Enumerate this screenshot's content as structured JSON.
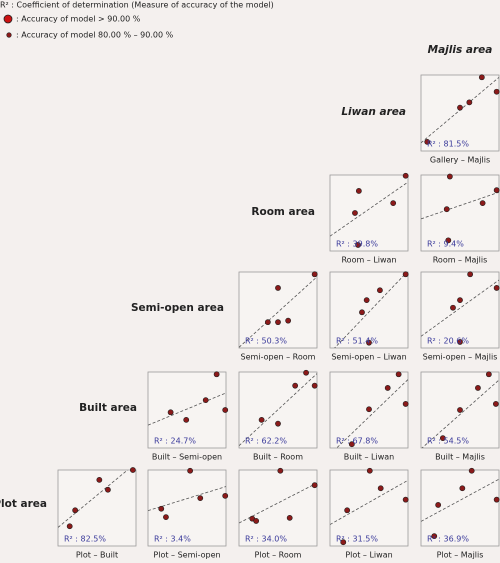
{
  "legend": {
    "r2": "R² : Coefficient of determination (Measure of accuracy of the model)",
    "large": ": Accuracy of model > 90.00 %",
    "small": ": Accuracy of model  80.00 % – 90.00 %"
  },
  "row_titles": [
    "Majlis area",
    "Liwan area",
    "Room area",
    "Semi-open area",
    "Built area",
    "Plot area"
  ],
  "chart_data": [
    {
      "type": "scatter",
      "xlabel": "Gallery – Majlis",
      "annotation": "R² : 81.5%",
      "x": [
        0.08,
        0.5,
        0.62,
        0.78,
        0.97
      ],
      "y": [
        0.12,
        0.57,
        0.64,
        0.97,
        0.78
      ],
      "xlim": [
        0,
        1
      ],
      "ylim": [
        0,
        1
      ],
      "color": "#8b1a1a"
    },
    {
      "type": "scatter",
      "xlabel": "Room – Liwan",
      "annotation": "R² : 39.8%",
      "x": [
        0.37,
        0.32,
        0.36,
        0.81,
        0.97
      ],
      "y": [
        0.79,
        0.5,
        0.08,
        0.63,
        0.99
      ],
      "xlim": [
        0,
        1
      ],
      "ylim": [
        0,
        1
      ],
      "color": "#8b1a1a"
    },
    {
      "type": "scatter",
      "xlabel": "Room – Majlis",
      "annotation": "R² : 9.4%",
      "x": [
        0.37,
        0.35,
        0.33,
        0.79,
        0.97
      ],
      "y": [
        0.98,
        0.14,
        0.55,
        0.63,
        0.8
      ],
      "xlim": [
        0,
        1
      ],
      "ylim": [
        0,
        1
      ],
      "color": "#8b1a1a"
    },
    {
      "type": "scatter",
      "xlabel": "Semi-open – Room",
      "annotation": "R² : 50.3%",
      "x": [
        0.5,
        0.37,
        0.5,
        0.63,
        0.97
      ],
      "y": [
        0.79,
        0.34,
        0.34,
        0.36,
        0.97
      ],
      "xlim": [
        0,
        1
      ],
      "ylim": [
        0,
        1
      ],
      "color": "#8b1a1a"
    },
    {
      "type": "scatter",
      "xlabel": "Semi-open – Liwan",
      "annotation": "R² : 51.4%",
      "x": [
        0.5,
        0.41,
        0.47,
        0.64,
        0.97
      ],
      "y": [
        0.07,
        0.47,
        0.63,
        0.76,
        0.97
      ],
      "xlim": [
        0,
        1
      ],
      "ylim": [
        0,
        1
      ],
      "color": "#8b1a1a"
    },
    {
      "type": "scatter",
      "xlabel": "Semi-open – Majlis",
      "annotation": "R² : 20.6%",
      "x": [
        0.41,
        0.5,
        0.63,
        0.5,
        0.97
      ],
      "y": [
        0.53,
        0.63,
        0.97,
        0.08,
        0.79
      ],
      "xlim": [
        0,
        1
      ],
      "ylim": [
        0,
        1
      ],
      "color": "#8b1a1a"
    },
    {
      "type": "scatter",
      "xlabel": "Built – Semi-open",
      "annotation": "R² : 24.7%",
      "x": [
        0.29,
        0.49,
        0.74,
        0.88,
        0.99
      ],
      "y": [
        0.47,
        0.37,
        0.63,
        0.97,
        0.5
      ],
      "xlim": [
        0,
        1
      ],
      "ylim": [
        0,
        1
      ],
      "color": "#8b1a1a"
    },
    {
      "type": "scatter",
      "xlabel": "Built – Room",
      "annotation": "R² : 62.2%",
      "x": [
        0.29,
        0.5,
        0.72,
        0.86,
        0.97
      ],
      "y": [
        0.37,
        0.32,
        0.82,
        0.99,
        0.82
      ],
      "xlim": [
        0,
        1
      ],
      "ylim": [
        0,
        1
      ],
      "color": "#8b1a1a"
    },
    {
      "type": "scatter",
      "xlabel": "Built – Liwan",
      "annotation": "R² : 67.8%",
      "x": [
        0.28,
        0.5,
        0.74,
        0.88,
        0.97
      ],
      "y": [
        0.05,
        0.51,
        0.79,
        0.97,
        0.58
      ],
      "xlim": [
        0,
        1
      ],
      "ylim": [
        0,
        1
      ],
      "color": "#8b1a1a"
    },
    {
      "type": "scatter",
      "xlabel": "Built – Majlis",
      "annotation": "R² : 54.5%",
      "x": [
        0.28,
        0.5,
        0.73,
        0.87,
        0.96
      ],
      "y": [
        0.13,
        0.5,
        0.79,
        0.97,
        0.58
      ],
      "xlim": [
        0,
        1
      ],
      "ylim": [
        0,
        1
      ],
      "color": "#8b1a1a"
    },
    {
      "type": "scatter",
      "xlabel": "Plot – Built",
      "annotation": "R² : 82.5%",
      "x": [
        0.15,
        0.22,
        0.53,
        0.64,
        0.96
      ],
      "y": [
        0.26,
        0.47,
        0.87,
        0.74,
        1
      ],
      "xlim": [
        0,
        1
      ],
      "ylim": [
        0,
        1
      ],
      "color": "#8b1a1a"
    },
    {
      "type": "scatter",
      "xlabel": "Plot – Semi-open",
      "annotation": "R² : 3.4%",
      "x": [
        0.17,
        0.23,
        0.54,
        0.67,
        0.99
      ],
      "y": [
        0.49,
        0.38,
        0.99,
        0.63,
        0.66
      ],
      "xlim": [
        0,
        1
      ],
      "ylim": [
        0,
        1
      ],
      "color": "#8b1a1a"
    },
    {
      "type": "scatter",
      "xlabel": "Plot – Room",
      "annotation": "R² : 34.0%",
      "x": [
        0.17,
        0.22,
        0.53,
        0.65,
        0.97
      ],
      "y": [
        0.36,
        0.33,
        0.99,
        0.37,
        0.8
      ],
      "xlim": [
        0,
        1
      ],
      "ylim": [
        0,
        1
      ],
      "color": "#8b1a1a"
    },
    {
      "type": "scatter",
      "xlabel": "Plot – Liwan",
      "annotation": "R² : 31.5%",
      "x": [
        0.17,
        0.22,
        0.51,
        0.65,
        0.97
      ],
      "y": [
        0.05,
        0.47,
        0.99,
        0.76,
        0.61
      ],
      "xlim": [
        0,
        1
      ],
      "ylim": [
        0,
        1
      ],
      "color": "#8b1a1a"
    },
    {
      "type": "scatter",
      "xlabel": "Plot – Majlis",
      "annotation": "R² : 36.9%",
      "x": [
        0.17,
        0.22,
        0.53,
        0.65,
        0.97
      ],
      "y": [
        0.13,
        0.54,
        0.76,
        0.99,
        0.61
      ],
      "xlim": [
        0,
        1
      ],
      "ylim": [
        0,
        1
      ],
      "color": "#8b1a1a"
    }
  ]
}
